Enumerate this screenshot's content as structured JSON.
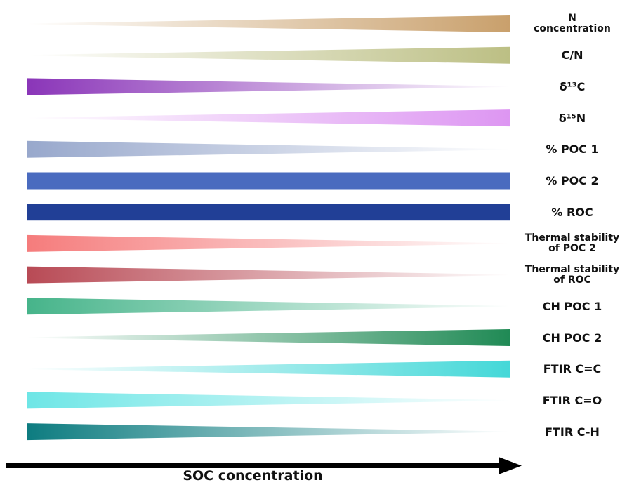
{
  "chart_data": {
    "type": "trend-wedges",
    "x_axis_label": "SOC concentration",
    "direction_legend": {
      "increasing": "wedge widens toward high SOC (right)",
      "decreasing": "wedge widens toward low SOC (left)",
      "constant": "uniform band"
    },
    "rows": [
      {
        "label": [
          "N",
          "concentration"
        ],
        "trend": "increasing",
        "color": "#c9a06c"
      },
      {
        "label": [
          "C/N"
        ],
        "trend": "increasing",
        "color": "#bcbf84"
      },
      {
        "label": [
          "δ¹³C"
        ],
        "trend": "decreasing",
        "color": "#8a35b8"
      },
      {
        "label": [
          "δ¹⁵N"
        ],
        "trend": "increasing",
        "color": "#dd96f2"
      },
      {
        "label": [
          "% POC 1"
        ],
        "trend": "decreasing",
        "color": "#98a8cc"
      },
      {
        "label": [
          "% POC 2"
        ],
        "trend": "constant",
        "color": "#4a6bbf"
      },
      {
        "label": [
          "% ROC"
        ],
        "trend": "constant",
        "color": "#213f96"
      },
      {
        "label": [
          "Thermal stability",
          "of POC 2"
        ],
        "trend": "decreasing",
        "color": "#f57c7c"
      },
      {
        "label": [
          "Thermal stability",
          "of ROC"
        ],
        "trend": "decreasing",
        "color": "#b84a55"
      },
      {
        "label": [
          "CH POC 1"
        ],
        "trend": "decreasing",
        "color": "#46b48a"
      },
      {
        "label": [
          "CH POC 2"
        ],
        "trend": "increasing",
        "color": "#208a55"
      },
      {
        "label": [
          "FTIR C=C"
        ],
        "trend": "increasing",
        "color": "#44d8d8"
      },
      {
        "label": [
          "FTIR C=O"
        ],
        "trend": "decreasing",
        "color": "#6ee6e6"
      },
      {
        "label": [
          "FTIR C-H"
        ],
        "trend": "decreasing",
        "color": "#0d7c80"
      }
    ]
  }
}
